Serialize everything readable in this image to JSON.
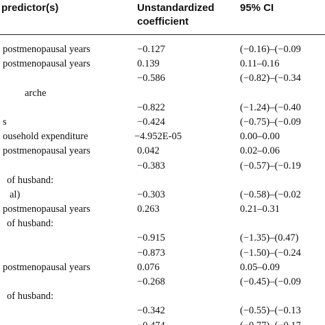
{
  "header": {
    "col_predictor_line1": "predictor(s)",
    "col_coef_line1": "Unstandardized",
    "col_coef_line2": "coefficient",
    "col_ci": "95% CI"
  },
  "rows": [
    {
      "label": "postmenopausal years",
      "coef": "−0.127",
      "ci": "(−0.16)–(−0.09"
    },
    {
      "label": "postmenopausal years",
      "coef": "0.139",
      "ci": "0.11–0.16"
    },
    {
      "label": "",
      "coef": "−0.586",
      "ci": "(−0.82)–(−0.34"
    },
    {
      "label": "arche",
      "coef": "",
      "ci": ""
    },
    {
      "label": "",
      "coef": "−0.822",
      "ci": "(−1.24)–(−0.40"
    },
    {
      "label": "s",
      "coef": "−0.424",
      "ci": "(−0.75)–(−0.09"
    },
    {
      "label": "ousehold expenditure",
      "coef": "−4.952E-05",
      "ci": "0.00–0.00"
    },
    {
      "label": "postmenopausal years",
      "coef": "0.042",
      "ci": "0.02–0.06"
    },
    {
      "label": "",
      "coef": "−0.383",
      "ci": "(−0.57)–(−0.19"
    },
    {
      "label": "of husband:",
      "coef": "",
      "ci": ""
    },
    {
      "label": "al)",
      "coef": "−0.303",
      "ci": "(−0.58)–(−0.02"
    },
    {
      "label": "postmenopausal years",
      "coef": "0.263",
      "ci": "0.21–0.31"
    },
    {
      "label": "of husband:",
      "coef": "",
      "ci": ""
    },
    {
      "label": "",
      "coef": "−0.915",
      "ci": "(−1.35)–(0.47)"
    },
    {
      "label": "",
      "coef": "−0.873",
      "ci": "(−1.50)–(−0.24"
    },
    {
      "label": "postmenopausal years",
      "coef": "0.076",
      "ci": "0.05–0.09"
    },
    {
      "label": "",
      "coef": "−0.268",
      "ci": "(−0.45)–(−0.09"
    },
    {
      "label": "of husband:",
      "coef": "",
      "ci": ""
    },
    {
      "label": "",
      "coef": "−0.342",
      "ci": "(−0.55)–(−0.13"
    },
    {
      "label": "",
      "coef": "−0.474",
      "ci": "(−0.77)–(−0.17"
    }
  ]
}
